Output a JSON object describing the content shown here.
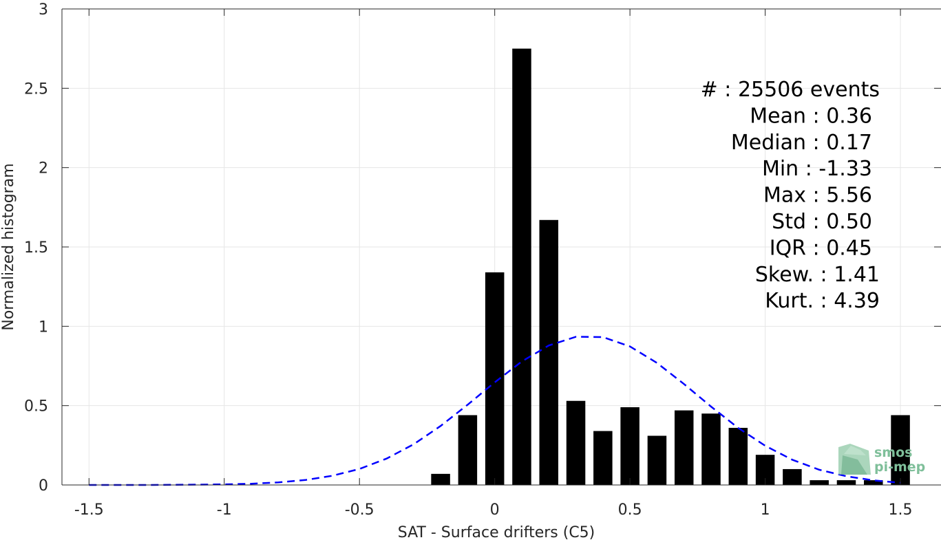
{
  "chart_data": {
    "type": "bar",
    "xlabel": "SAT - Surface drifters (C5)",
    "ylabel": "Normalized histogram",
    "xlim": [
      -1.6,
      1.65
    ],
    "ylim": [
      0,
      3
    ],
    "grid": true,
    "x_ticks": [
      -1.5,
      -1,
      -0.5,
      0,
      0.5,
      1,
      1.5
    ],
    "x_tick_labels": [
      "-1.5",
      "-1",
      "-0.5",
      "0",
      "0.5",
      "1",
      "1.5"
    ],
    "y_ticks": [
      0,
      0.5,
      1,
      1.5,
      2,
      2.5,
      3
    ],
    "y_tick_labels": [
      "0",
      "0.5",
      "1",
      "1.5",
      "2",
      "2.5",
      "3"
    ],
    "bar_width": 0.07,
    "series": [
      {
        "type": "bar",
        "color": "#000000",
        "x": [
          -0.2,
          -0.1,
          0.0,
          0.1,
          0.2,
          0.3,
          0.4,
          0.5,
          0.6,
          0.7,
          0.8,
          0.9,
          1.0,
          1.1,
          1.2,
          1.3,
          1.4,
          1.5
        ],
        "values": [
          0.07,
          0.44,
          1.34,
          2.75,
          1.67,
          0.53,
          0.34,
          0.49,
          0.31,
          0.47,
          0.45,
          0.36,
          0.19,
          0.1,
          0.03,
          0.03,
          0.03,
          0.44
        ]
      },
      {
        "type": "line",
        "style": "dashed",
        "color": "#0000ff",
        "x": [
          -1.5,
          -1.4,
          -1.3,
          -1.2,
          -1.1,
          -1.0,
          -0.9,
          -0.8,
          -0.7,
          -0.6,
          -0.5,
          -0.4,
          -0.3,
          -0.2,
          -0.1,
          0.0,
          0.1,
          0.2,
          0.3,
          0.4,
          0.5,
          0.6,
          0.7,
          0.8,
          0.9,
          1.0,
          1.1,
          1.2,
          1.3,
          1.4,
          1.5
        ],
        "values": [
          0.0,
          0.0,
          0.0,
          0.001,
          0.002,
          0.004,
          0.008,
          0.016,
          0.031,
          0.058,
          0.101,
          0.166,
          0.256,
          0.372,
          0.506,
          0.647,
          0.778,
          0.879,
          0.934,
          0.932,
          0.873,
          0.769,
          0.636,
          0.494,
          0.36,
          0.247,
          0.159,
          0.096,
          0.055,
          0.029,
          0.014
        ]
      }
    ],
    "stats": [
      {
        "label": "#  : 25506 events",
        "align": "end-far"
      },
      {
        "label": "Mean : 0.36",
        "align": "end"
      },
      {
        "label": "Median : 0.17",
        "align": "end"
      },
      {
        "label": "Min : -1.33",
        "align": "end"
      },
      {
        "label": "Max : 5.56",
        "align": "end"
      },
      {
        "label": "Std : 0.50",
        "align": "end"
      },
      {
        "label": "IQR : 0.45",
        "align": "end"
      },
      {
        "label": "Skew. : 1.41",
        "align": "end-far"
      },
      {
        "label": "Kurt. : 4.39",
        "align": "end-far"
      }
    ],
    "logo": {
      "line1": "smos",
      "line2": "pi-mep",
      "color": "#7fbf9a"
    }
  }
}
